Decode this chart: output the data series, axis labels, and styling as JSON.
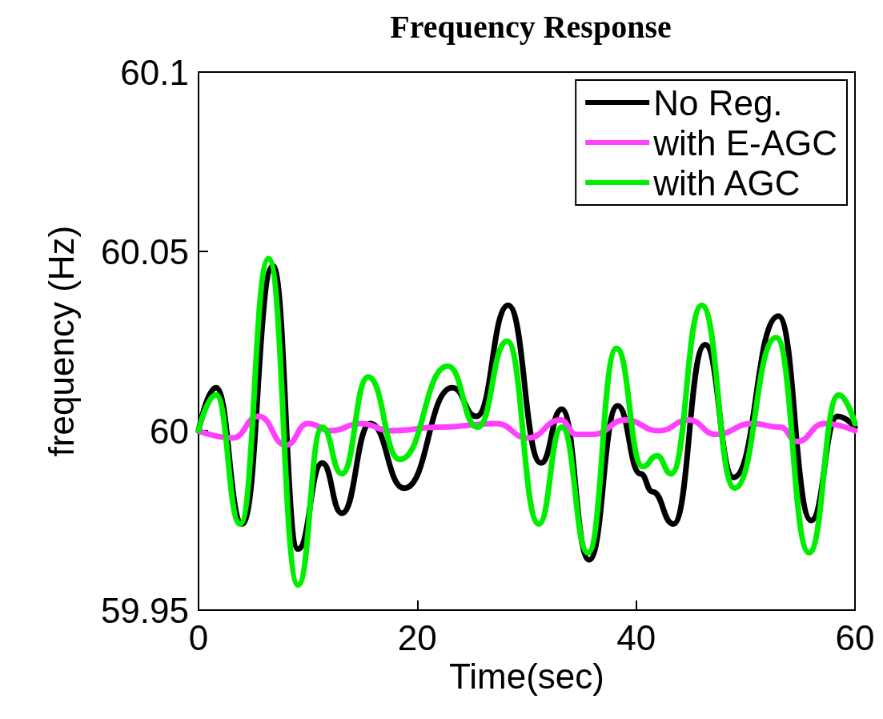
{
  "chart_data": {
    "type": "line",
    "title": "Frequency Response",
    "xlabel": "Time(sec)",
    "ylabel": "frequency (Hz)",
    "xlim": [
      0,
      60
    ],
    "xticks": [
      0,
      20,
      40,
      60
    ],
    "ylim": [
      59.95,
      60.1
    ],
    "yticks": [
      59.95,
      60,
      60.05,
      60.1
    ],
    "grid": false,
    "legend": "top right",
    "marker": "none",
    "line_style": "solid",
    "series": [
      {
        "name": "No Reg.",
        "color": "#000000",
        "x": [
          0,
          1.6,
          4.0,
          6.8,
          9.1,
          11.3,
          13.1,
          15.7,
          18.8,
          23.2,
          25.4,
          28.3,
          31.3,
          33.2,
          35.7,
          38.3,
          40.4,
          41.5,
          43.4,
          46.3,
          48.9,
          53.0,
          56.0,
          58.4,
          60
        ],
        "values": [
          60.0,
          60.012,
          59.974,
          60.046,
          59.967,
          59.991,
          59.977,
          60.002,
          59.984,
          60.012,
          60.004,
          60.035,
          59.991,
          60.006,
          59.964,
          60.007,
          59.988,
          59.983,
          59.974,
          60.024,
          59.987,
          60.032,
          59.975,
          60.004,
          60.001
        ]
      },
      {
        "name": "with E-AGC",
        "color": "#ff40ff",
        "x": [
          0,
          3.1,
          5.5,
          8.0,
          10.0,
          12.1,
          14.8,
          17.6,
          22.0,
          27.2,
          30.1,
          33.1,
          34.5,
          36.1,
          39.0,
          42.1,
          44.8,
          47.3,
          50.6,
          53.2,
          54.7,
          57.2,
          60
        ],
        "values": [
          60.0,
          59.998,
          60.004,
          59.996,
          60.002,
          60.0,
          60.002,
          60.0,
          60.001,
          60.002,
          59.998,
          60.003,
          59.999,
          59.999,
          60.003,
          60.0,
          60.003,
          59.999,
          60.002,
          60.001,
          59.997,
          60.002,
          60.0
        ]
      },
      {
        "name": "with AGC",
        "color": "#00ee00",
        "x": [
          0,
          1.6,
          3.8,
          6.4,
          9.1,
          11.3,
          13.1,
          15.5,
          18.4,
          22.8,
          25.5,
          28.2,
          31.1,
          33.2,
          35.6,
          38.2,
          40.6,
          41.9,
          43.2,
          46.0,
          49.0,
          52.8,
          55.8,
          58.5,
          60
        ],
        "values": [
          60.0,
          60.01,
          59.974,
          60.048,
          59.957,
          60.001,
          59.988,
          60.015,
          59.992,
          60.018,
          60.001,
          60.025,
          59.974,
          60.001,
          59.966,
          60.023,
          59.99,
          59.993,
          59.988,
          60.035,
          59.984,
          60.026,
          59.966,
          60.01,
          60.002
        ]
      }
    ]
  }
}
